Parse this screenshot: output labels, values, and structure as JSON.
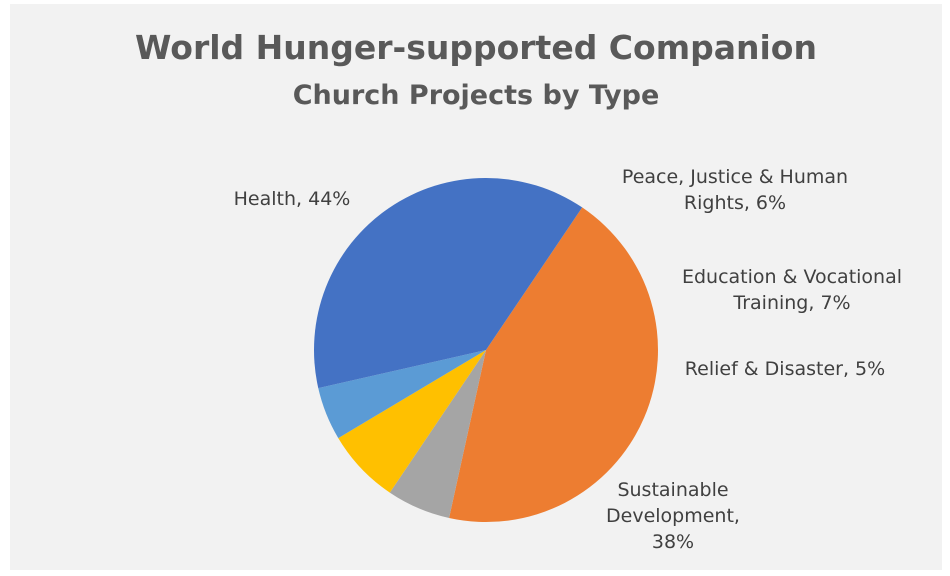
{
  "chart_data": {
    "type": "pie",
    "title_line1": "World Hunger-supported Companion",
    "title_line2": "Church Projects by Type",
    "slices": [
      {
        "name": "Health",
        "value": 44,
        "color": "#ed7d31",
        "label_lines": [
          "Health, 44%"
        ]
      },
      {
        "name": "Peace, Justice & Human Rights",
        "value": 6,
        "color": "#a5a5a5",
        "label_lines": [
          "Peace, Justice & Human",
          "Rights, 6%"
        ]
      },
      {
        "name": "Education & Vocational Training",
        "value": 7,
        "color": "#ffc000",
        "label_lines": [
          "Education & Vocational",
          "Training, 7%"
        ]
      },
      {
        "name": "Relief & Disaster",
        "value": 5,
        "color": "#5b9bd5",
        "label_lines": [
          "Relief & Disaster, 5%"
        ]
      },
      {
        "name": "Sustainable Development",
        "value": 38,
        "color": "#4472c4",
        "label_lines": [
          "Sustainable",
          "Development,",
          "38%"
        ]
      }
    ]
  }
}
